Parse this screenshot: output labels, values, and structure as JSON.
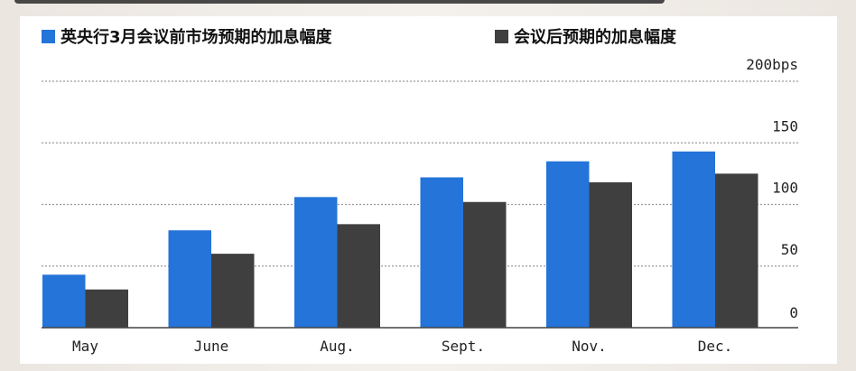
{
  "colors": {
    "series1": "#2474d9",
    "series2": "#3f3f3f",
    "grid": "#9a9a9a",
    "axis": "#444444"
  },
  "legend": [
    {
      "label": "英央行3月会议前市场预期的加息幅度",
      "color": "#2474d9"
    },
    {
      "label": "会议后预期的加息幅度",
      "color": "#3f3f3f"
    }
  ],
  "chart_data": {
    "type": "bar",
    "categories": [
      "May",
      "June",
      "Aug.",
      "Sept.",
      "Nov.",
      "Dec."
    ],
    "series": [
      {
        "name": "英央行3月会议前市场预期的加息幅度",
        "values": [
          43,
          79,
          106,
          122,
          135,
          143
        ]
      },
      {
        "name": "会议后预期的加息幅度",
        "values": [
          31,
          60,
          84,
          102,
          118,
          125
        ]
      }
    ],
    "ylim": [
      0,
      200
    ],
    "yticks": [
      0,
      50,
      100,
      150,
      200
    ],
    "ytick_labels": [
      "0",
      "50",
      "100",
      "150",
      "200bps"
    ],
    "grid": true,
    "axis_position": "right",
    "legend_position": "top"
  }
}
